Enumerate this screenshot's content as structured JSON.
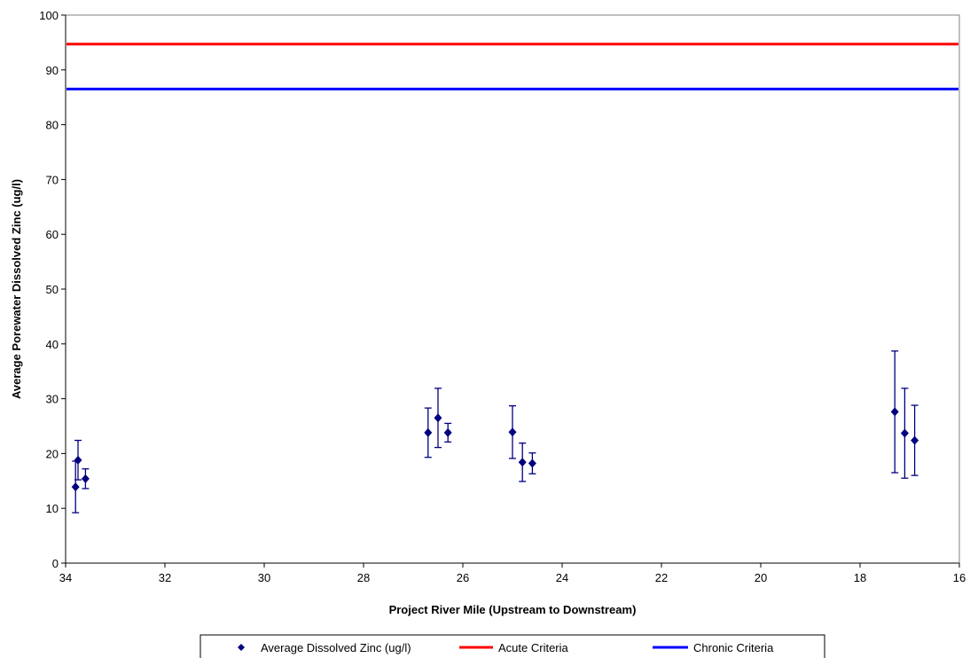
{
  "chart_data": {
    "type": "scatter",
    "xlabel": "Project River Mile (Upstream to Downstream)",
    "ylabel": "Average Porewater Dissolved Zinc (ug/l)",
    "xlim": [
      34,
      16
    ],
    "ylim": [
      0,
      100
    ],
    "x_ticks": [
      34,
      32,
      30,
      28,
      26,
      24,
      22,
      20,
      18,
      16
    ],
    "y_ticks": [
      0,
      10,
      20,
      30,
      40,
      50,
      60,
      70,
      80,
      90,
      100
    ],
    "grid": false,
    "legend_position": "bottom",
    "series": [
      {
        "name": "Average Dissolved Zinc (ug/l)",
        "kind": "points-with-error-bars",
        "color": "#000080",
        "marker": "diamond",
        "points": [
          {
            "x": 33.75,
            "y": 18.8,
            "low": 15.2,
            "high": 22.4
          },
          {
            "x": 33.8,
            "y": 13.9,
            "low": 9.2,
            "high": 18.6
          },
          {
            "x": 33.6,
            "y": 15.4,
            "low": 13.6,
            "high": 17.2
          },
          {
            "x": 26.7,
            "y": 23.8,
            "low": 19.3,
            "high": 28.3
          },
          {
            "x": 26.5,
            "y": 26.5,
            "low": 21.1,
            "high": 31.9
          },
          {
            "x": 26.3,
            "y": 23.8,
            "low": 22.1,
            "high": 25.5
          },
          {
            "x": 25.0,
            "y": 23.9,
            "low": 19.1,
            "high": 28.7
          },
          {
            "x": 24.8,
            "y": 18.4,
            "low": 14.9,
            "high": 21.9
          },
          {
            "x": 24.6,
            "y": 18.2,
            "low": 16.3,
            "high": 20.1
          },
          {
            "x": 17.3,
            "y": 27.6,
            "low": 16.5,
            "high": 38.7
          },
          {
            "x": 17.1,
            "y": 23.7,
            "low": 15.5,
            "high": 31.9
          },
          {
            "x": 16.9,
            "y": 22.4,
            "low": 16.0,
            "high": 28.8
          }
        ]
      },
      {
        "name": "Acute Criteria",
        "kind": "horizontal-line",
        "color": "#ff0000",
        "y": 94.7
      },
      {
        "name": "Chronic Criteria",
        "kind": "horizontal-line",
        "color": "#0000ff",
        "y": 86.5
      }
    ]
  }
}
